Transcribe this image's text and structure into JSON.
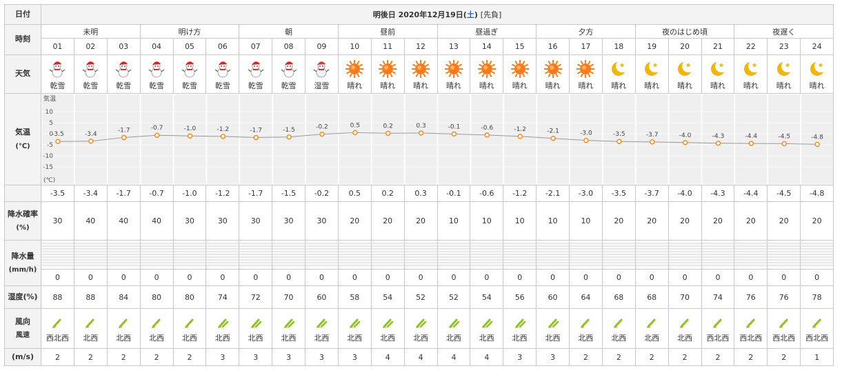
{
  "labels": {
    "date": "日付",
    "time": "時刻",
    "weather": "天気",
    "temp": "気温",
    "temp_unit": "(℃)",
    "precip_prob": "降水確率",
    "precip_prob_unit": "(%)",
    "precip": "降水量",
    "precip_unit": "(mm/h)",
    "humidity": "湿度(%)",
    "wind_dir": "風向",
    "wind_speed": "風速",
    "wind_unit": "(m/s)"
  },
  "date_header": {
    "prefix": "明後日 2020年12月19日(",
    "day": "土",
    "suffix": ")",
    "note": "[先負]"
  },
  "periods": [
    "未明",
    "明け方",
    "朝",
    "昼前",
    "昼過ぎ",
    "夕方",
    "夜のはじめ頃",
    "夜遅く"
  ],
  "hours": [
    "01",
    "02",
    "03",
    "04",
    "05",
    "06",
    "07",
    "08",
    "09",
    "10",
    "11",
    "12",
    "13",
    "14",
    "15",
    "16",
    "17",
    "18",
    "19",
    "20",
    "21",
    "22",
    "23",
    "24"
  ],
  "weather": [
    "乾雪",
    "乾雪",
    "乾雪",
    "乾雪",
    "乾雪",
    "乾雪",
    "乾雪",
    "乾雪",
    "湿雪",
    "晴れ",
    "晴れ",
    "晴れ",
    "晴れ",
    "晴れ",
    "晴れ",
    "晴れ",
    "晴れ",
    "晴れ",
    "晴れ",
    "晴れ",
    "晴れ",
    "晴れ",
    "晴れ",
    "晴れ"
  ],
  "weather_icons": [
    "snowman-icon",
    "snowman-icon",
    "snowman-icon",
    "snowman-icon",
    "snowman-icon",
    "snowman-icon",
    "snowman-icon",
    "snowman-icon",
    "wet-snowman-icon",
    "sun-icon",
    "sun-icon",
    "sun-icon",
    "sun-icon",
    "sun-icon",
    "sun-icon",
    "sun-icon",
    "sun-icon",
    "moon-icon",
    "moon-icon",
    "moon-icon",
    "moon-icon",
    "moon-icon",
    "moon-icon",
    "moon-icon"
  ],
  "chart_data": {
    "type": "line",
    "x": [
      "01",
      "02",
      "03",
      "04",
      "05",
      "06",
      "07",
      "08",
      "09",
      "10",
      "11",
      "12",
      "13",
      "14",
      "15",
      "16",
      "17",
      "18",
      "19",
      "20",
      "21",
      "22",
      "23",
      "24"
    ],
    "series": [
      {
        "values": [
          -3.5,
          -3.4,
          -1.7,
          -0.7,
          -1.0,
          -1.2,
          -1.7,
          -1.5,
          -0.2,
          0.5,
          0.2,
          0.3,
          -0.1,
          -0.6,
          -1.2,
          -2.1,
          -3.0,
          -3.5,
          -3.7,
          -4.0,
          -4.3,
          -4.4,
          -4.5,
          -4.8
        ]
      }
    ],
    "ylim": [
      -20,
      15
    ],
    "y_ticks": [
      10,
      5,
      0,
      -5,
      -10,
      -15
    ],
    "ylabel_top": "気温",
    "ylabel_bottom": "(℃)",
    "line_color": "#999999",
    "marker_color": "#ff8c1a"
  },
  "temp_text": [
    "-3.5",
    "-3.4",
    "-1.7",
    "-0.7",
    "-1.0",
    "-1.2",
    "-1.7",
    "-1.5",
    "-0.2",
    "0.5",
    "0.2",
    "0.3",
    "-0.1",
    "-0.6",
    "-1.2",
    "-2.1",
    "-3.0",
    "-3.5",
    "-3.7",
    "-4.0",
    "-4.3",
    "-4.4",
    "-4.5",
    "-4.8"
  ],
  "precip_prob": [
    "30",
    "40",
    "40",
    "40",
    "30",
    "30",
    "30",
    "30",
    "30",
    "20",
    "20",
    "20",
    "10",
    "10",
    "10",
    "10",
    "10",
    "20",
    "20",
    "20",
    "20",
    "20",
    "20",
    "20"
  ],
  "precip": [
    "0",
    "0",
    "0",
    "0",
    "0",
    "0",
    "0",
    "0",
    "0",
    "0",
    "0",
    "0",
    "0",
    "0",
    "0",
    "0",
    "0",
    "0",
    "0",
    "0",
    "0",
    "0",
    "0",
    "0"
  ],
  "humidity": [
    "88",
    "88",
    "84",
    "80",
    "80",
    "74",
    "72",
    "70",
    "60",
    "58",
    "54",
    "52",
    "52",
    "54",
    "56",
    "60",
    "64",
    "68",
    "68",
    "70",
    "74",
    "76",
    "76",
    "78"
  ],
  "wind_dir": [
    "西北西",
    "北西",
    "北西",
    "北西",
    "北西",
    "北西",
    "北西",
    "北西",
    "北西",
    "北西",
    "北西",
    "北西",
    "北西",
    "北西",
    "北西",
    "北西",
    "北西",
    "北西",
    "北西",
    "北西",
    "西北西",
    "西北西",
    "西北西",
    "西北西"
  ],
  "wind_speed": [
    "2",
    "2",
    "2",
    "2",
    "2",
    "3",
    "3",
    "3",
    "3",
    "3",
    "4",
    "4",
    "4",
    "4",
    "3",
    "3",
    "2",
    "2",
    "2",
    "2",
    "2",
    "2",
    "2",
    "1"
  ],
  "colors": {
    "sat": "#1e63c8",
    "wind_arrow": "#8fc31f",
    "sun": "#ff7a1a",
    "moon": "#f2b705"
  }
}
